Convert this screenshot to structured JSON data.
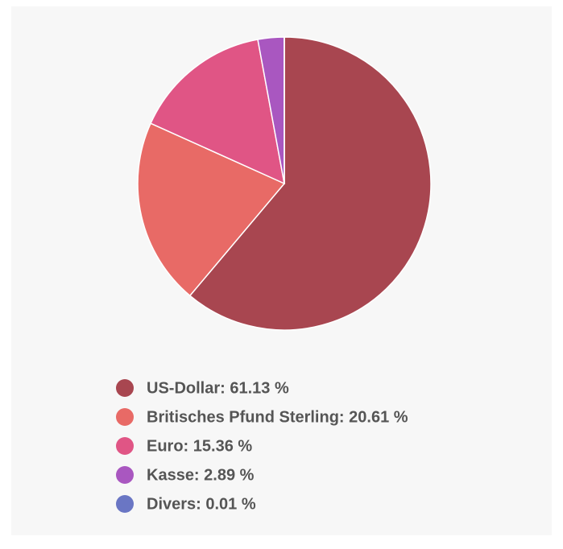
{
  "chart_data": {
    "type": "pie",
    "labels": [
      "US-Dollar: 61.13 %",
      "Britisches Pfund Sterling: 20.61 %",
      "Euro: 15.36 %",
      "Kasse: 2.89 %",
      "Divers: 0.01 %"
    ],
    "values": [
      61.13,
      20.61,
      15.36,
      2.89,
      0.01
    ],
    "colors": [
      "#a84650",
      "#e86a66",
      "#e05585",
      "#a957c0",
      "#6a76c4"
    ]
  }
}
